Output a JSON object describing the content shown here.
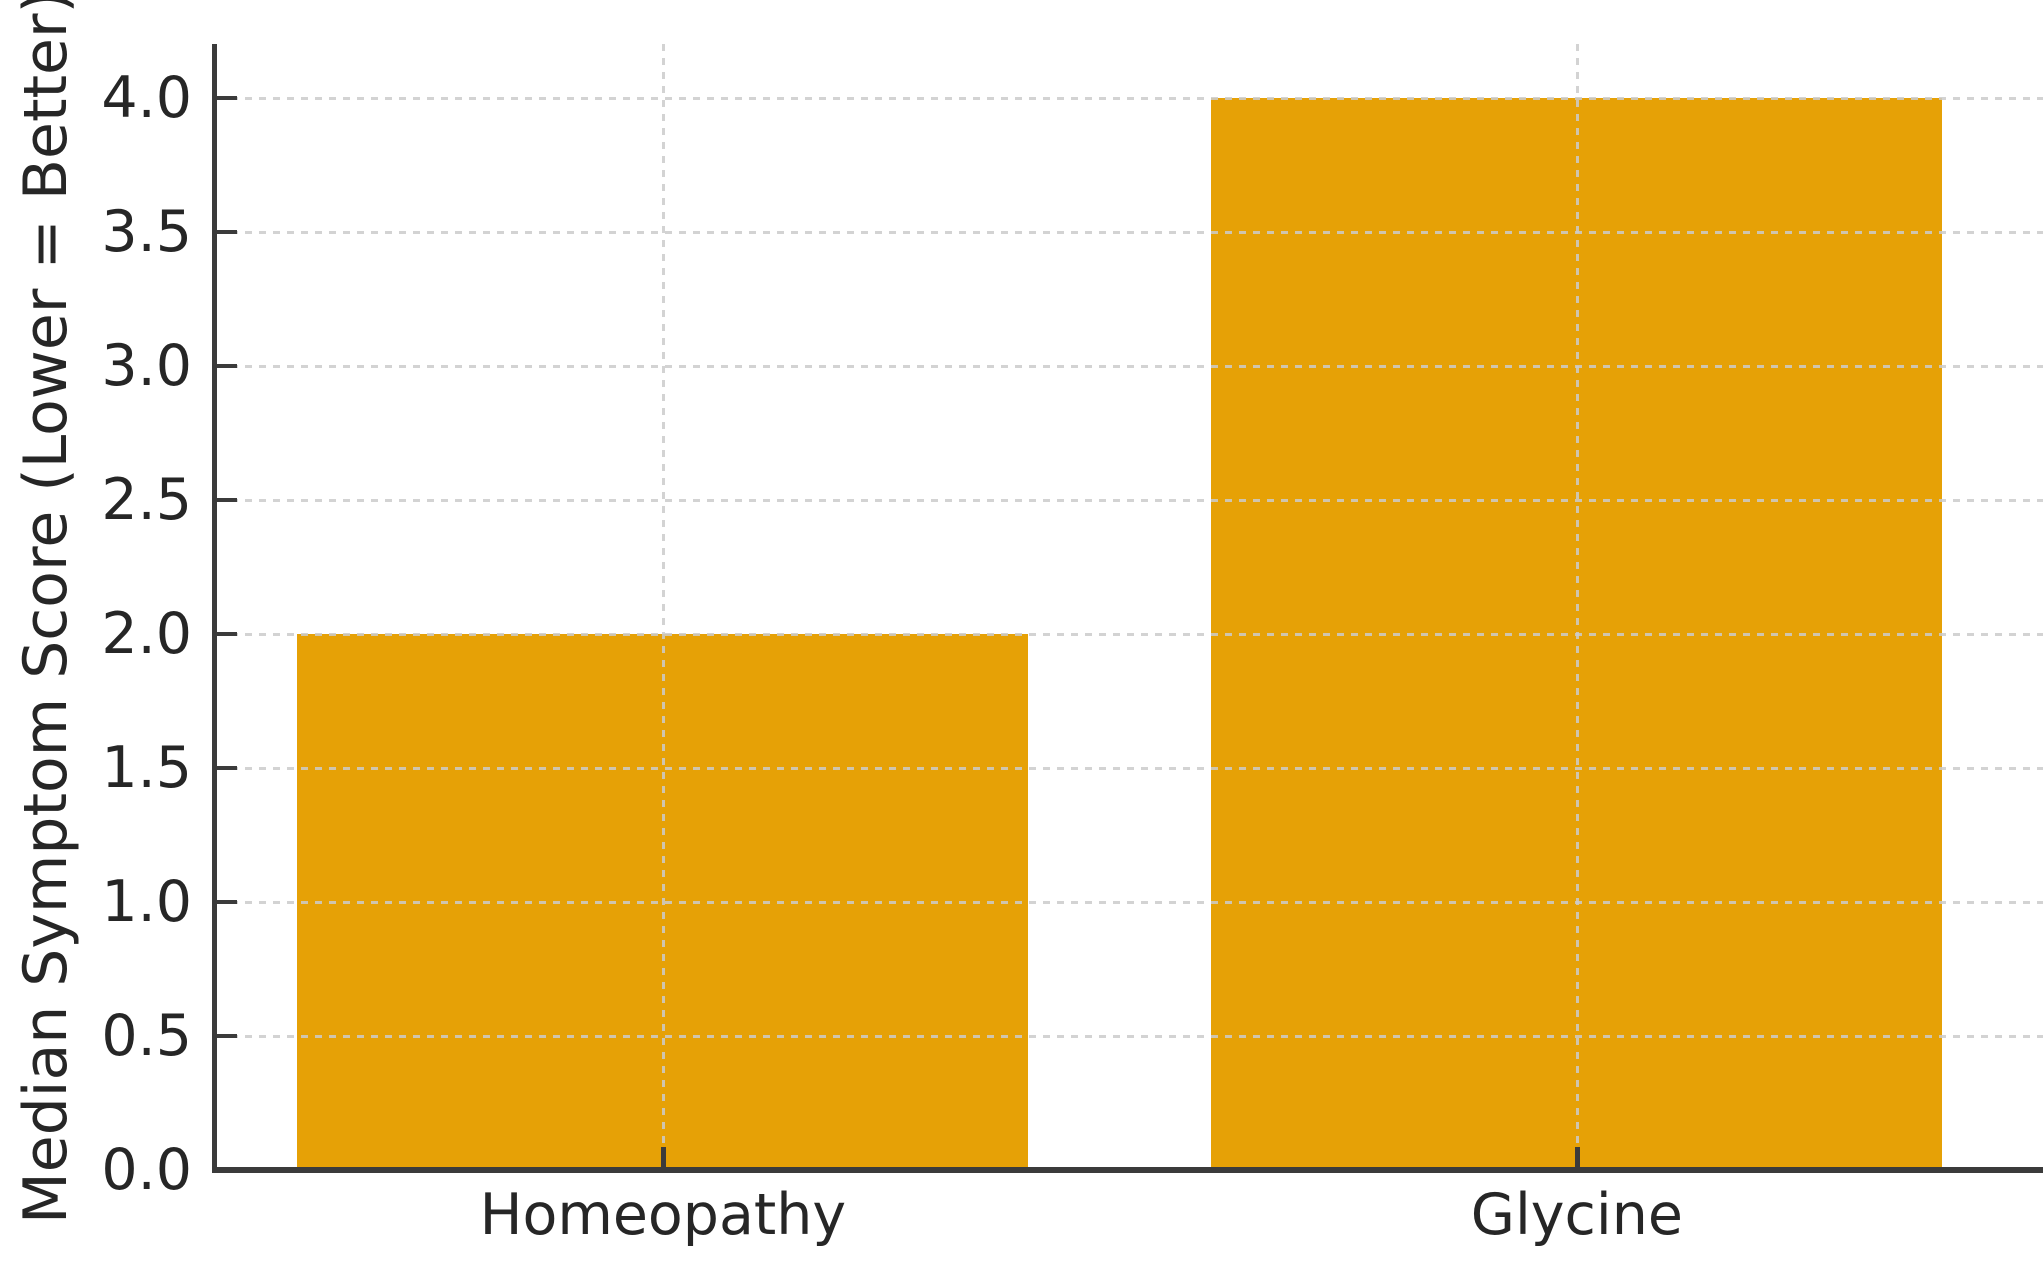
{
  "chart_data": {
    "type": "bar",
    "categories": [
      "Homeopathy",
      "Glycine"
    ],
    "values": [
      2.0,
      4.0
    ],
    "title": "",
    "xlabel": "",
    "ylabel": "Median Symptom Score (Lower = Better)",
    "ylim": [
      0.0,
      4.2
    ],
    "xlim": [
      -0.49,
      1.51
    ],
    "bar_width_units": 0.8,
    "yticks": [
      0.0,
      0.5,
      1.0,
      1.5,
      2.0,
      2.5,
      3.0,
      3.5,
      4.0
    ],
    "ytick_labels": [
      "0.0",
      "0.5",
      "1.0",
      "1.5",
      "2.0",
      "2.5",
      "3.0",
      "3.5",
      "4.0"
    ],
    "grid": {
      "visible": true,
      "linestyle": "dashed",
      "axes": "both"
    },
    "legend_visible": false,
    "colors": {
      "bar": "#E6A106",
      "spine": "#3B3B3B",
      "tick_text": "#262626",
      "grid": "#CBCBCB",
      "background": "#FFFFFF"
    }
  }
}
